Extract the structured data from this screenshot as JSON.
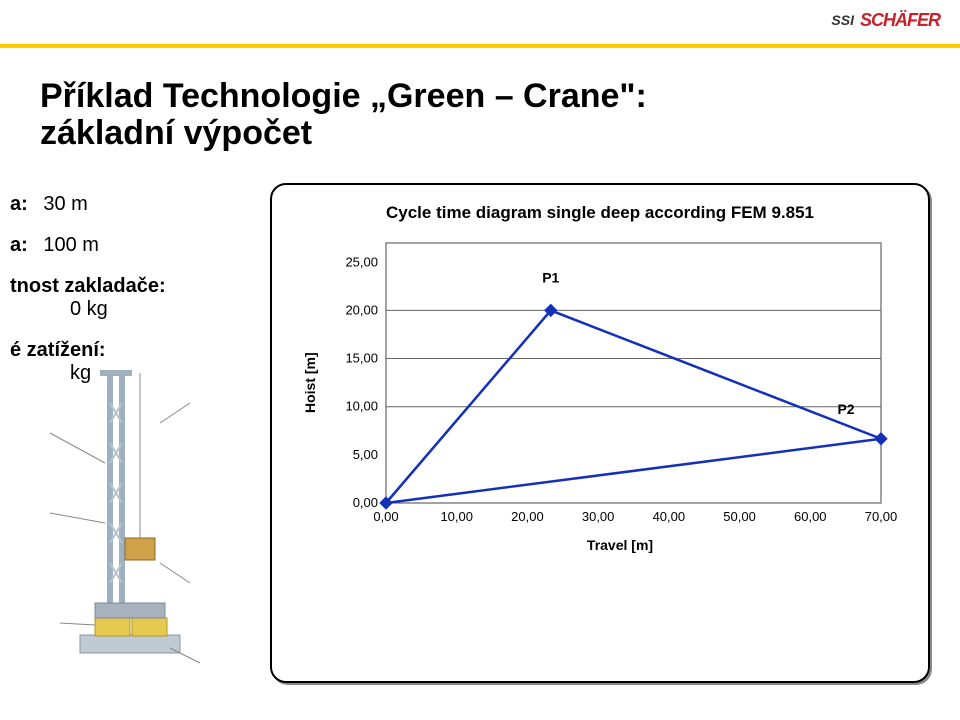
{
  "header": {
    "logo_ssi": "SSI",
    "logo_schafer": "SCHÄFER"
  },
  "title": {
    "line1": "Příklad Technologie „Green – Crane\":",
    "line2": "základní výpočet"
  },
  "left": {
    "p1_label": "a:",
    "p1_value": "30 m",
    "p2_label": "a:",
    "p2_value": "100 m",
    "p3_line1": "tnost zakladače:",
    "p3_line2": "0 kg",
    "p4_line1": "é zatížení:",
    "p4_line2": " kg"
  },
  "chart": {
    "type": "line",
    "title": "Cycle time diagram single deep according FEM 9.851",
    "xlabel": "Travel [m]",
    "ylabel": "Hoist [m]",
    "x_ticks": [
      0,
      10,
      20,
      30,
      40,
      50,
      60,
      70
    ],
    "x_tick_labels": [
      "0,00",
      "10,00",
      "20,00",
      "30,00",
      "40,00",
      "50,00",
      "60,00",
      "70,00"
    ],
    "y_ticks": [
      0,
      5,
      10,
      15,
      20,
      25
    ],
    "y_tick_labels": [
      "0,00",
      "5,00",
      "10,00",
      "15,00",
      "20,00",
      "25,00"
    ],
    "xlim": [
      0,
      70
    ],
    "ylim": [
      0,
      27
    ],
    "h_gridlines_at": [
      10,
      15,
      20
    ],
    "series": {
      "color": "#1430b8",
      "line_width": 2.5,
      "marker": "diamond",
      "marker_size": 12,
      "marker_fill": "#1430b8",
      "points": [
        {
          "x": 0,
          "y": 0
        },
        {
          "x": 23.3,
          "y": 20.0,
          "label": "P1",
          "label_dx": 0,
          "label_dy": -28
        },
        {
          "x": 70.0,
          "y": 6.67,
          "label": "P2",
          "label_dx": -35,
          "label_dy": -25
        },
        {
          "x": 0,
          "y": 0
        }
      ]
    },
    "grid_color": "#666666",
    "background_color": "#ffffff",
    "frame_color": "#666666"
  }
}
